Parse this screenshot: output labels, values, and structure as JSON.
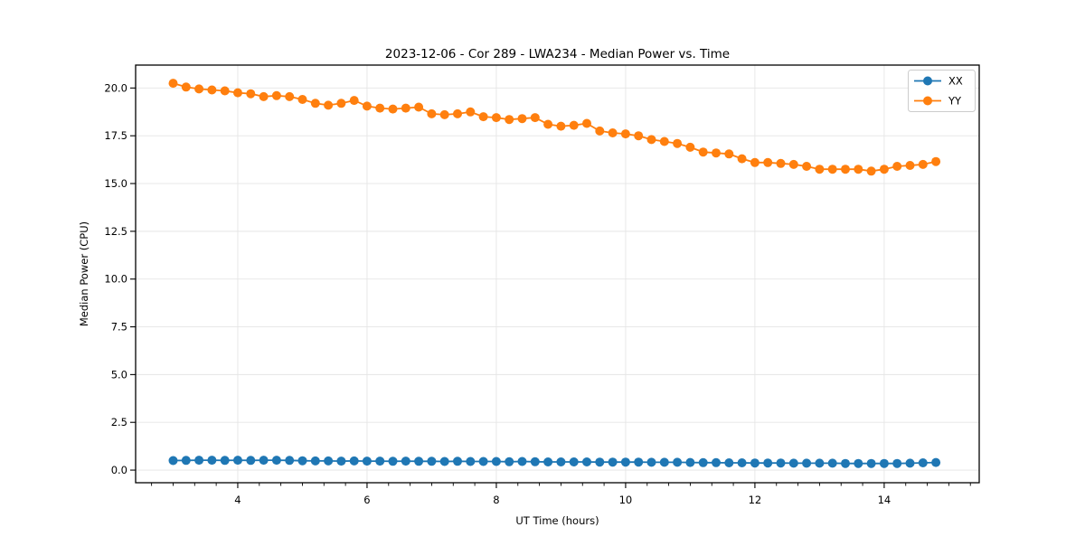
{
  "window": {
    "title": "2023-12-06 - Cor 289 - LWA234 - Median Power vs. Time"
  },
  "chart_data": {
    "type": "line",
    "title": "2023-12-06 - Cor 289 - LWA234 - Median Power vs. Time",
    "xlabel": "UT Time (hours)",
    "ylabel": "Median Power (CPU)",
    "xlim": [
      2.42,
      15.47
    ],
    "ylim": [
      -0.66,
      21.2
    ],
    "xticks": [
      4,
      6,
      8,
      10,
      12,
      14
    ],
    "yticks": [
      0.0,
      2.5,
      5.0,
      7.5,
      10.0,
      12.5,
      15.0,
      17.5,
      20.0
    ],
    "minor_xtick_step": 0.3333333,
    "grid": true,
    "grid_color": "#e5e5e5",
    "legend_position": "upper right",
    "x": [
      3.0,
      3.2,
      3.4,
      3.6,
      3.8,
      4.0,
      4.2,
      4.4,
      4.6,
      4.8,
      5.0,
      5.2,
      5.4,
      5.6,
      5.8,
      6.0,
      6.2,
      6.4,
      6.6,
      6.8,
      7.0,
      7.2,
      7.4,
      7.6,
      7.8,
      8.0,
      8.2,
      8.4,
      8.6,
      8.8,
      9.0,
      9.2,
      9.4,
      9.6,
      9.8,
      10.0,
      10.2,
      10.4,
      10.6,
      10.8,
      11.0,
      11.2,
      11.4,
      11.6,
      11.8,
      12.0,
      12.2,
      12.4,
      12.6,
      12.8,
      13.0,
      13.2,
      13.4,
      13.6,
      13.8,
      14.0,
      14.2,
      14.4,
      14.6,
      14.8
    ],
    "series": [
      {
        "name": "XX",
        "color": "#1f77b4",
        "values": [
          0.5,
          0.51,
          0.52,
          0.52,
          0.51,
          0.52,
          0.51,
          0.52,
          0.52,
          0.51,
          0.49,
          0.48,
          0.48,
          0.47,
          0.48,
          0.47,
          0.47,
          0.46,
          0.47,
          0.46,
          0.46,
          0.45,
          0.46,
          0.45,
          0.45,
          0.45,
          0.44,
          0.45,
          0.44,
          0.43,
          0.43,
          0.43,
          0.43,
          0.42,
          0.42,
          0.42,
          0.42,
          0.41,
          0.41,
          0.41,
          0.4,
          0.39,
          0.39,
          0.38,
          0.38,
          0.37,
          0.37,
          0.37,
          0.36,
          0.36,
          0.36,
          0.36,
          0.35,
          0.35,
          0.35,
          0.35,
          0.35,
          0.36,
          0.38,
          0.4
        ]
      },
      {
        "name": "YY",
        "color": "#ff7f0e",
        "values": [
          20.25,
          20.05,
          19.95,
          19.9,
          19.85,
          19.75,
          19.7,
          19.55,
          19.6,
          19.55,
          19.4,
          19.2,
          19.1,
          19.2,
          19.35,
          19.05,
          18.95,
          18.9,
          18.95,
          19.0,
          18.65,
          18.6,
          18.65,
          18.75,
          18.5,
          18.45,
          18.35,
          18.4,
          18.45,
          18.1,
          18.0,
          18.05,
          18.15,
          17.75,
          17.65,
          17.6,
          17.5,
          17.3,
          17.2,
          17.1,
          16.9,
          16.65,
          16.6,
          16.55,
          16.3,
          16.1,
          16.1,
          16.05,
          16.0,
          15.9,
          15.75,
          15.75,
          15.75,
          15.75,
          15.65,
          15.75,
          15.9,
          15.95,
          16.0,
          16.15
        ]
      }
    ]
  }
}
